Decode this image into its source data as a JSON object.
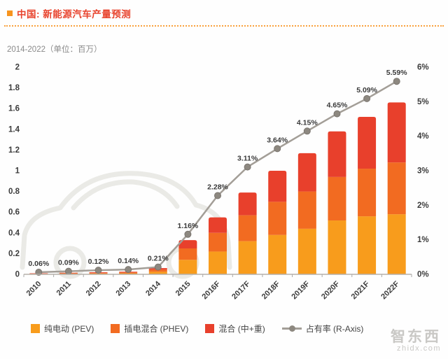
{
  "header": {
    "title": "中国: 新能源汽车产量预测"
  },
  "subtitle": "2014-2022（单位：百万）",
  "legend": [
    {
      "label": "纯电动 (PEV)",
      "color": "#F89C1C",
      "type": "square"
    },
    {
      "label": "插电混合 (PHEV)",
      "color": "#F26B21",
      "type": "square"
    },
    {
      "label": "混合 (中+重)",
      "color": "#E8402C",
      "type": "square"
    },
    {
      "label": "占有率 (R-Axis)",
      "color": "#A39E97",
      "type": "line"
    }
  ],
  "watermark": {
    "line1": "智东西",
    "line2": "zhidx.com"
  },
  "colors": {
    "title_red": "#E8432D",
    "accent_orange": "#F7941E",
    "line_gray": "#A39E97",
    "marker_gray": "#8D8880",
    "axis_text": "#3C3C3C"
  },
  "chart_data": {
    "type": "bar",
    "subtype": "stacked-bars-with-share-line",
    "title": "中国: 新能源汽车产量预测",
    "subtitle": "2014-2022（单位：百万）",
    "categories": [
      "2010",
      "2011",
      "2012",
      "2013",
      "2014",
      "2015",
      "2016F",
      "2017F",
      "2018F",
      "2019F",
      "2020F",
      "2021F",
      "2022F"
    ],
    "series": [
      {
        "name": "纯电动 (PEV)",
        "color": "#F89C1C",
        "values": [
          0.004,
          0.006,
          0.008,
          0.01,
          0.025,
          0.14,
          0.22,
          0.32,
          0.38,
          0.44,
          0.52,
          0.56,
          0.58
        ]
      },
      {
        "name": "插电混合 (PHEV)",
        "color": "#F26B21",
        "values": [
          0.003,
          0.005,
          0.006,
          0.008,
          0.02,
          0.11,
          0.18,
          0.25,
          0.32,
          0.36,
          0.42,
          0.46,
          0.5
        ]
      },
      {
        "name": "混合 (中+重)",
        "color": "#E8402C",
        "values": [
          0.003,
          0.004,
          0.006,
          0.007,
          0.015,
          0.08,
          0.15,
          0.22,
          0.3,
          0.37,
          0.44,
          0.5,
          0.58
        ]
      }
    ],
    "line_series": {
      "name": "占有率 (R-Axis)",
      "color": "#A39E97",
      "values": [
        0.06,
        0.09,
        0.12,
        0.14,
        0.21,
        1.16,
        2.28,
        3.11,
        3.64,
        4.15,
        4.65,
        5.09,
        5.59
      ],
      "labels": [
        "0.06%",
        "0.09%",
        "0.12%",
        "0.14%",
        "0.21%",
        "1.16%",
        "2.28%",
        "3.11%",
        "3.64%",
        "4.15%",
        "4.65%",
        "5.09%",
        "5.59%"
      ]
    },
    "left_axis": {
      "min": 0,
      "max": 2,
      "ticks": [
        "0",
        "0.2",
        "0.4",
        "0.6",
        "0.8",
        "1",
        "1.2",
        "1.4",
        "1.6",
        "1.8",
        "2"
      ]
    },
    "right_axis": {
      "min": 0,
      "max": 6,
      "ticks": [
        "0%",
        "1%",
        "2%",
        "3%",
        "4%",
        "5%",
        "6%"
      ]
    },
    "grid": false,
    "legend_position": "bottom"
  }
}
